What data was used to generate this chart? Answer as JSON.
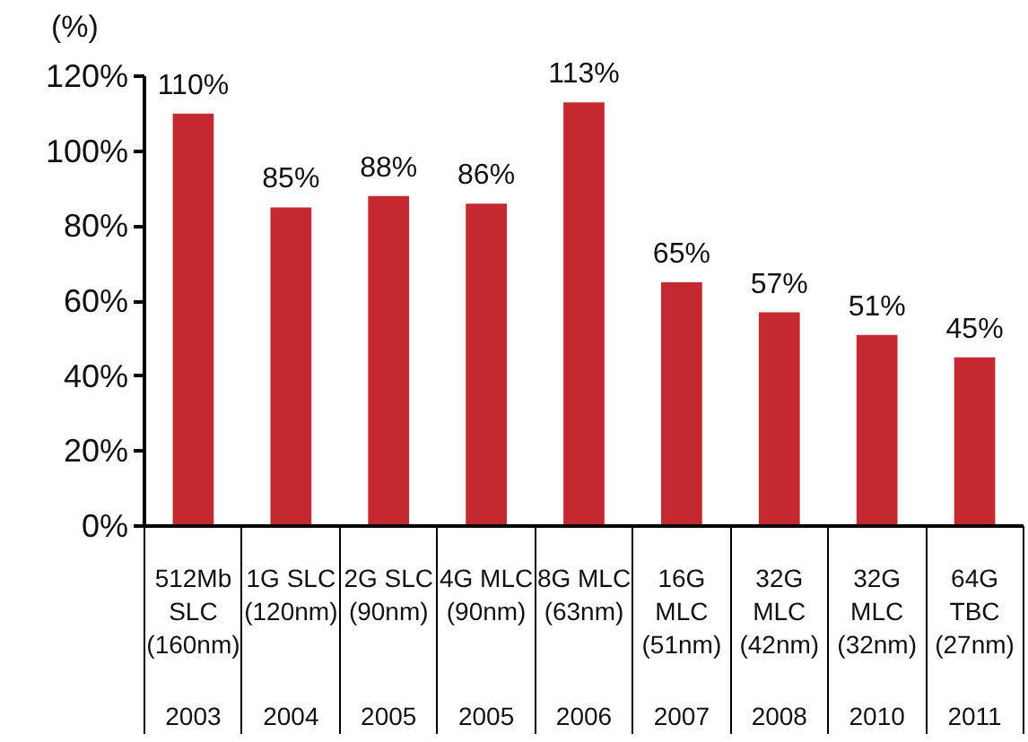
{
  "chart_data": {
    "type": "bar",
    "ylabel": "(%)",
    "categories": [
      "512Mb\nSLC\n(160nm)\n2003",
      "1G SLC\n(120nm)\n2004",
      "2G SLC\n(90nm)\n2005",
      "4G MLC\n(90nm)\n2005",
      "8G MLC\n(63nm)\n2006",
      "16G\nMLC\n(51nm)\n2007",
      "32G\nMLC\n(42nm)\n2008",
      "32G\nMLC\n(32nm)\n2010",
      "64G\nTBC\n(27nm)\n2011"
    ],
    "values": [
      110,
      85,
      88,
      86,
      113,
      65,
      57,
      51,
      45
    ],
    "color": "#c4292f",
    "value_labels": [
      "110%",
      "85%",
      "88%",
      "86%",
      "113%",
      "65%",
      "57%",
      "51%",
      "45%"
    ],
    "ylim": [
      0,
      120
    ],
    "yticks": [
      {
        "value": 0,
        "label": "0%"
      },
      {
        "value": 20,
        "label": "20%"
      },
      {
        "value": 40,
        "label": "40%"
      },
      {
        "value": 60,
        "label": "60%"
      },
      {
        "value": 80,
        "label": "80%"
      },
      {
        "value": 100,
        "label": "100%"
      },
      {
        "value": 120,
        "label": "120%"
      }
    ]
  }
}
